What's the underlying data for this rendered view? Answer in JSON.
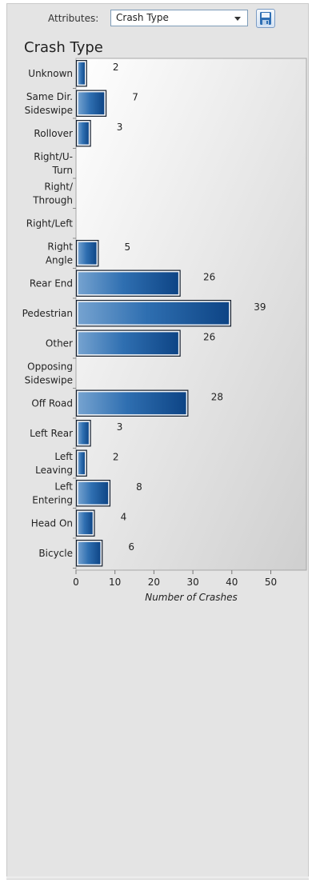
{
  "toolbar": {
    "attributes_label": "Attributes:",
    "selected_attribute": "Crash Type"
  },
  "chart_data": {
    "type": "bar",
    "orientation": "horizontal",
    "title": "Crash Type",
    "xlabel": "Number of Crashes",
    "ylabel": "",
    "xlim": [
      0,
      59
    ],
    "xticks": [
      0,
      10,
      20,
      30,
      40,
      50
    ],
    "grid": false,
    "bar_color": "#2563a6",
    "categories": [
      "Unknown",
      "Same Dir. Sideswipe",
      "Rollover",
      "Right/U-Turn",
      "Right/ Through",
      "Right/Left",
      "Right Angle",
      "Rear End",
      "Pedestrian",
      "Other",
      "Opposing Sideswipe",
      "Off Road",
      "Left Rear",
      "Left Leaving",
      "Left Entering",
      "Head On",
      "Bicycle"
    ],
    "category_labels": [
      [
        "Unknown"
      ],
      [
        "Same Dir.",
        "Sideswipe"
      ],
      [
        "Rollover"
      ],
      [
        "Right/U-",
        "Turn"
      ],
      [
        "Right/",
        "Through"
      ],
      [
        "Right/Left"
      ],
      [
        "Right",
        "Angle"
      ],
      [
        "Rear End"
      ],
      [
        "Pedestrian"
      ],
      [
        "Other"
      ],
      [
        "Opposing",
        "Sideswipe"
      ],
      [
        "Off Road"
      ],
      [
        "Left Rear"
      ],
      [
        "Left",
        "Leaving"
      ],
      [
        "Left",
        "Entering"
      ],
      [
        "Head On"
      ],
      [
        "Bicycle"
      ]
    ],
    "values": [
      2,
      7,
      3,
      null,
      null,
      null,
      5,
      26,
      39,
      26,
      null,
      28,
      3,
      2,
      8,
      4,
      6
    ]
  }
}
